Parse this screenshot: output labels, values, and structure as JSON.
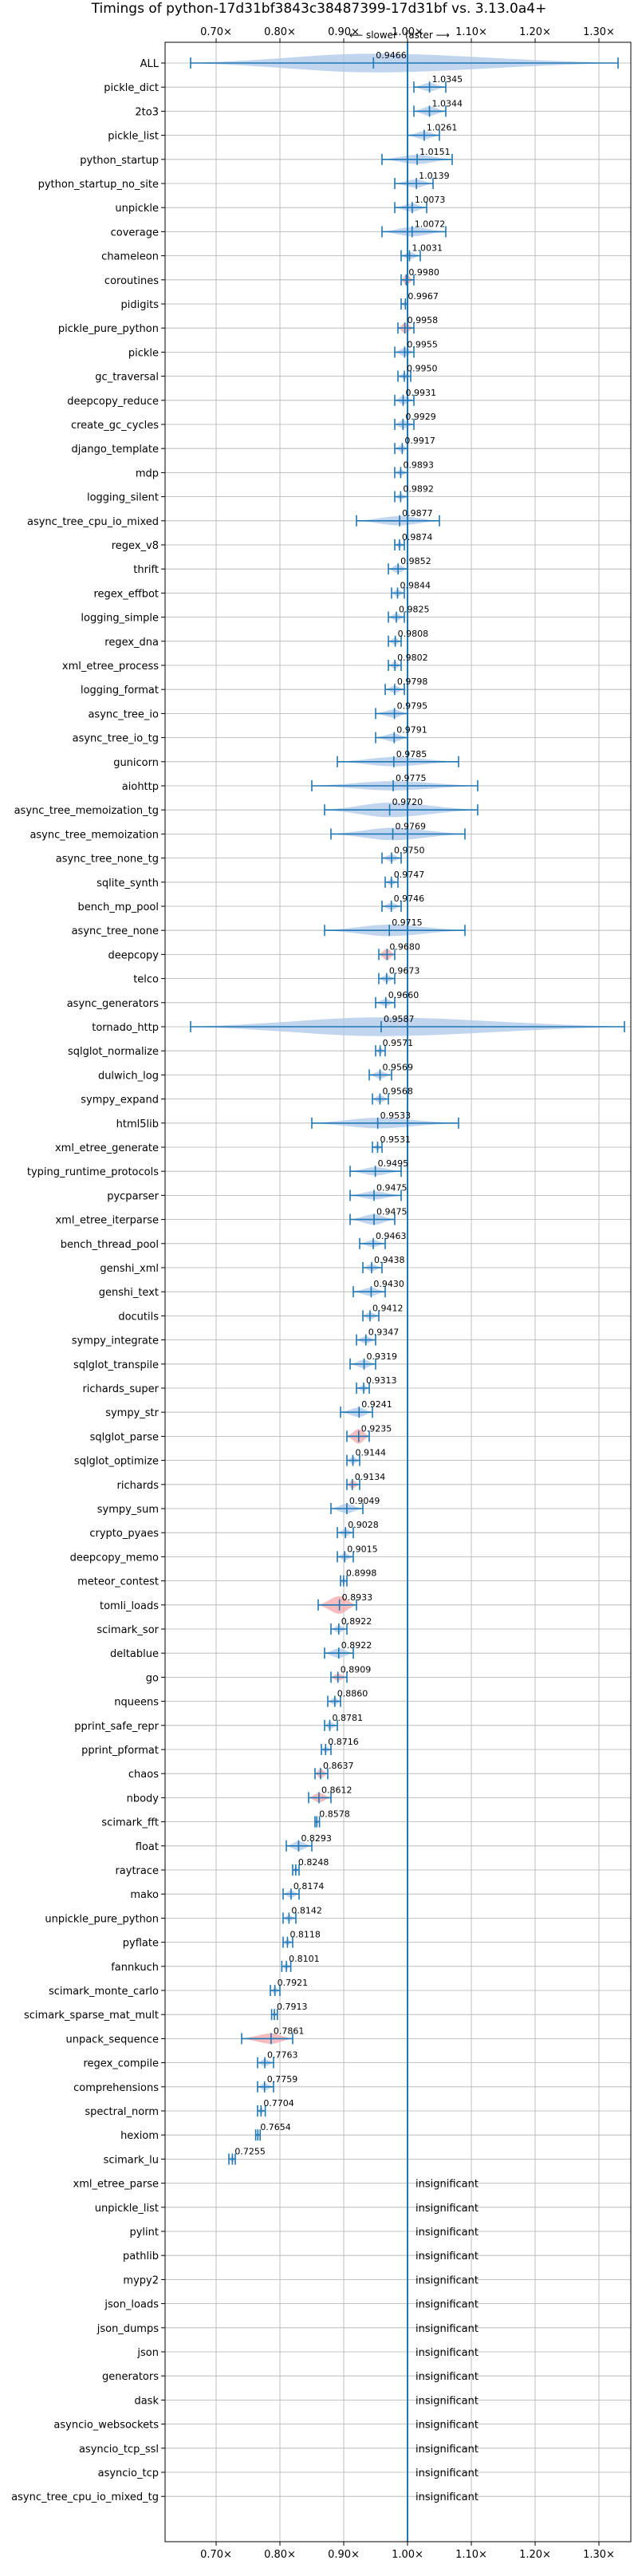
{
  "chart_data": {
    "type": "violin",
    "title": "Timings of python-17d31bf3843c38487399-17d31bf vs. 3.13.0a4+",
    "annotation": {
      "left": "⟵ slower",
      "right": "faster ⟶"
    },
    "xlim": [
      0.62,
      1.35
    ],
    "xticks": [
      0.7,
      0.8,
      0.9,
      1.0,
      1.1,
      1.2,
      1.3
    ],
    "xtick_labels": [
      "0.70×",
      "0.80×",
      "0.90×",
      "1.00×",
      "1.10×",
      "1.20×",
      "1.30×"
    ],
    "reference_line": 1.0,
    "grid": true,
    "insignificant_label": "insignificant",
    "colors": {
      "significant": "#aec7e8",
      "highlight": "#f4a6a8",
      "reference": "#1f77b4"
    },
    "benchmarks": [
      {
        "name": "ALL",
        "value": 0.9466,
        "lo": 0.66,
        "hi": 1.33,
        "w": 0.9,
        "c": 0
      },
      {
        "name": "pickle_dict",
        "value": 1.0345,
        "lo": 1.01,
        "hi": 1.06,
        "w": 0.4,
        "c": 0
      },
      {
        "name": "2to3",
        "value": 1.0344,
        "lo": 1.01,
        "hi": 1.06,
        "w": 0.45,
        "c": 0
      },
      {
        "name": "pickle_list",
        "value": 1.0261,
        "lo": 1.0,
        "hi": 1.05,
        "w": 0.4,
        "c": 0
      },
      {
        "name": "python_startup",
        "value": 1.0151,
        "lo": 0.96,
        "hi": 1.07,
        "w": 0.45,
        "c": 0
      },
      {
        "name": "python_startup_no_site",
        "value": 1.0139,
        "lo": 0.98,
        "hi": 1.04,
        "w": 0.4,
        "c": 0
      },
      {
        "name": "unpickle",
        "value": 1.0073,
        "lo": 0.98,
        "hi": 1.03,
        "w": 0.4,
        "c": 0
      },
      {
        "name": "coverage",
        "value": 1.0072,
        "lo": 0.96,
        "hi": 1.06,
        "w": 0.45,
        "c": 0
      },
      {
        "name": "chameleon",
        "value": 1.0031,
        "lo": 0.99,
        "hi": 1.02,
        "w": 0.35,
        "c": 0
      },
      {
        "name": "coroutines",
        "value": 0.998,
        "lo": 0.99,
        "hi": 1.01,
        "w": 0.5,
        "c": 1
      },
      {
        "name": "pidigits",
        "value": 0.9967,
        "lo": 0.99,
        "hi": 1.0,
        "w": 0.3,
        "c": 0
      },
      {
        "name": "pickle_pure_python",
        "value": 0.9958,
        "lo": 0.985,
        "hi": 1.01,
        "w": 0.5,
        "c": 1
      },
      {
        "name": "pickle",
        "value": 0.9955,
        "lo": 0.98,
        "hi": 1.01,
        "w": 0.4,
        "c": 0
      },
      {
        "name": "gc_traversal",
        "value": 0.995,
        "lo": 0.985,
        "hi": 1.005,
        "w": 0.3,
        "c": 0
      },
      {
        "name": "deepcopy_reduce",
        "value": 0.9931,
        "lo": 0.98,
        "hi": 1.01,
        "w": 0.4,
        "c": 0
      },
      {
        "name": "create_gc_cycles",
        "value": 0.9929,
        "lo": 0.98,
        "hi": 1.01,
        "w": 0.4,
        "c": 0
      },
      {
        "name": "django_template",
        "value": 0.9917,
        "lo": 0.98,
        "hi": 1.0,
        "w": 0.35,
        "c": 0
      },
      {
        "name": "mdp",
        "value": 0.9893,
        "lo": 0.98,
        "hi": 1.0,
        "w": 0.3,
        "c": 0
      },
      {
        "name": "logging_silent",
        "value": 0.9892,
        "lo": 0.98,
        "hi": 1.0,
        "w": 0.3,
        "c": 0
      },
      {
        "name": "async_tree_cpu_io_mixed",
        "value": 0.9877,
        "lo": 0.92,
        "hi": 1.05,
        "w": 0.45,
        "c": 0
      },
      {
        "name": "regex_v8",
        "value": 0.9874,
        "lo": 0.98,
        "hi": 0.995,
        "w": 0.3,
        "c": 0
      },
      {
        "name": "thrift",
        "value": 0.9852,
        "lo": 0.97,
        "hi": 1.0,
        "w": 0.4,
        "c": 0
      },
      {
        "name": "regex_effbot",
        "value": 0.9844,
        "lo": 0.975,
        "hi": 0.995,
        "w": 0.35,
        "c": 0
      },
      {
        "name": "logging_simple",
        "value": 0.9825,
        "lo": 0.97,
        "hi": 0.995,
        "w": 0.35,
        "c": 0
      },
      {
        "name": "regex_dna",
        "value": 0.9808,
        "lo": 0.97,
        "hi": 0.99,
        "w": 0.35,
        "c": 0
      },
      {
        "name": "xml_etree_process",
        "value": 0.9802,
        "lo": 0.97,
        "hi": 0.99,
        "w": 0.35,
        "c": 0
      },
      {
        "name": "logging_format",
        "value": 0.9798,
        "lo": 0.965,
        "hi": 0.995,
        "w": 0.35,
        "c": 0
      },
      {
        "name": "async_tree_io",
        "value": 0.9795,
        "lo": 0.95,
        "hi": 1.0,
        "w": 0.4,
        "c": 0
      },
      {
        "name": "async_tree_io_tg",
        "value": 0.9791,
        "lo": 0.95,
        "hi": 1.0,
        "w": 0.4,
        "c": 0
      },
      {
        "name": "gunicorn",
        "value": 0.9785,
        "lo": 0.89,
        "hi": 1.08,
        "w": 0.45,
        "c": 0
      },
      {
        "name": "aiohttp",
        "value": 0.9775,
        "lo": 0.85,
        "hi": 1.11,
        "w": 0.45,
        "c": 0
      },
      {
        "name": "async_tree_memoization_tg",
        "value": 0.972,
        "lo": 0.87,
        "hi": 1.11,
        "w": 0.7,
        "c": 0
      },
      {
        "name": "async_tree_memoization",
        "value": 0.9769,
        "lo": 0.88,
        "hi": 1.09,
        "w": 0.6,
        "c": 0
      },
      {
        "name": "async_tree_none_tg",
        "value": 0.975,
        "lo": 0.96,
        "hi": 0.99,
        "w": 0.35,
        "c": 0
      },
      {
        "name": "sqlite_synth",
        "value": 0.9747,
        "lo": 0.965,
        "hi": 0.985,
        "w": 0.3,
        "c": 0
      },
      {
        "name": "bench_mp_pool",
        "value": 0.9746,
        "lo": 0.96,
        "hi": 0.99,
        "w": 0.35,
        "c": 0
      },
      {
        "name": "async_tree_none",
        "value": 0.9715,
        "lo": 0.87,
        "hi": 1.09,
        "w": 0.55,
        "c": 0
      },
      {
        "name": "deepcopy",
        "value": 0.968,
        "lo": 0.955,
        "hi": 0.98,
        "w": 0.55,
        "c": 1
      },
      {
        "name": "telco",
        "value": 0.9673,
        "lo": 0.955,
        "hi": 0.98,
        "w": 0.35,
        "c": 0
      },
      {
        "name": "async_generators",
        "value": 0.966,
        "lo": 0.95,
        "hi": 0.98,
        "w": 0.35,
        "c": 0
      },
      {
        "name": "tornado_http",
        "value": 0.9587,
        "lo": 0.66,
        "hi": 1.34,
        "w": 0.9,
        "c": 0
      },
      {
        "name": "sqlglot_normalize",
        "value": 0.9571,
        "lo": 0.95,
        "hi": 0.965,
        "w": 0.3,
        "c": 0
      },
      {
        "name": "dulwich_log",
        "value": 0.9569,
        "lo": 0.94,
        "hi": 0.975,
        "w": 0.35,
        "c": 0
      },
      {
        "name": "sympy_expand",
        "value": 0.9568,
        "lo": 0.945,
        "hi": 0.97,
        "w": 0.35,
        "c": 0
      },
      {
        "name": "html5lib",
        "value": 0.9533,
        "lo": 0.85,
        "hi": 1.08,
        "w": 0.5,
        "c": 0
      },
      {
        "name": "xml_etree_generate",
        "value": 0.9531,
        "lo": 0.945,
        "hi": 0.96,
        "w": 0.3,
        "c": 0
      },
      {
        "name": "typing_runtime_protocols",
        "value": 0.9495,
        "lo": 0.91,
        "hi": 0.99,
        "w": 0.4,
        "c": 0
      },
      {
        "name": "pycparser",
        "value": 0.9475,
        "lo": 0.91,
        "hi": 0.99,
        "w": 0.4,
        "c": 0
      },
      {
        "name": "xml_etree_iterparse",
        "value": 0.9475,
        "lo": 0.91,
        "hi": 0.98,
        "w": 0.5,
        "c": 0
      },
      {
        "name": "bench_thread_pool",
        "value": 0.9463,
        "lo": 0.925,
        "hi": 0.965,
        "w": 0.35,
        "c": 0
      },
      {
        "name": "genshi_xml",
        "value": 0.9438,
        "lo": 0.93,
        "hi": 0.96,
        "w": 0.35,
        "c": 0
      },
      {
        "name": "genshi_text",
        "value": 0.943,
        "lo": 0.915,
        "hi": 0.965,
        "w": 0.4,
        "c": 0
      },
      {
        "name": "docutils",
        "value": 0.9412,
        "lo": 0.93,
        "hi": 0.955,
        "w": 0.35,
        "c": 0
      },
      {
        "name": "sympy_integrate",
        "value": 0.9347,
        "lo": 0.92,
        "hi": 0.95,
        "w": 0.35,
        "c": 0
      },
      {
        "name": "sqlglot_transpile",
        "value": 0.9319,
        "lo": 0.91,
        "hi": 0.95,
        "w": 0.4,
        "c": 0
      },
      {
        "name": "richards_super",
        "value": 0.9313,
        "lo": 0.92,
        "hi": 0.94,
        "w": 0.3,
        "c": 0
      },
      {
        "name": "sympy_str",
        "value": 0.9241,
        "lo": 0.895,
        "hi": 0.945,
        "w": 0.45,
        "c": 0
      },
      {
        "name": "sqlglot_parse",
        "value": 0.9235,
        "lo": 0.905,
        "hi": 0.94,
        "w": 0.7,
        "c": 1
      },
      {
        "name": "sqlglot_optimize",
        "value": 0.9144,
        "lo": 0.905,
        "hi": 0.925,
        "w": 0.35,
        "c": 0
      },
      {
        "name": "richards",
        "value": 0.9134,
        "lo": 0.905,
        "hi": 0.925,
        "w": 0.4,
        "c": 1
      },
      {
        "name": "sympy_sum",
        "value": 0.9049,
        "lo": 0.88,
        "hi": 0.93,
        "w": 0.45,
        "c": 0
      },
      {
        "name": "crypto_pyaes",
        "value": 0.9028,
        "lo": 0.89,
        "hi": 0.915,
        "w": 0.35,
        "c": 0
      },
      {
        "name": "deepcopy_memo",
        "value": 0.9015,
        "lo": 0.89,
        "hi": 0.915,
        "w": 0.35,
        "c": 0
      },
      {
        "name": "meteor_contest",
        "value": 0.8998,
        "lo": 0.895,
        "hi": 0.905,
        "w": 0.3,
        "c": 0
      },
      {
        "name": "tomli_loads",
        "value": 0.8933,
        "lo": 0.86,
        "hi": 0.92,
        "w": 0.85,
        "c": 1
      },
      {
        "name": "scimark_sor",
        "value": 0.8922,
        "lo": 0.88,
        "hi": 0.905,
        "w": 0.35,
        "c": 0
      },
      {
        "name": "deltablue",
        "value": 0.8922,
        "lo": 0.87,
        "hi": 0.915,
        "w": 0.45,
        "c": 0
      },
      {
        "name": "go",
        "value": 0.8909,
        "lo": 0.88,
        "hi": 0.905,
        "w": 0.35,
        "c": 1
      },
      {
        "name": "nqueens",
        "value": 0.886,
        "lo": 0.875,
        "hi": 0.895,
        "w": 0.35,
        "c": 0
      },
      {
        "name": "pprint_safe_repr",
        "value": 0.8781,
        "lo": 0.87,
        "hi": 0.89,
        "w": 0.35,
        "c": 0
      },
      {
        "name": "pprint_pformat",
        "value": 0.8716,
        "lo": 0.865,
        "hi": 0.88,
        "w": 0.3,
        "c": 0
      },
      {
        "name": "chaos",
        "value": 0.8637,
        "lo": 0.855,
        "hi": 0.875,
        "w": 0.45,
        "c": 1
      },
      {
        "name": "nbody",
        "value": 0.8612,
        "lo": 0.845,
        "hi": 0.88,
        "w": 0.45,
        "c": 1
      },
      {
        "name": "scimark_fft",
        "value": 0.8578,
        "lo": 0.855,
        "hi": 0.862,
        "w": 0.25,
        "c": 0
      },
      {
        "name": "float",
        "value": 0.8293,
        "lo": 0.81,
        "hi": 0.85,
        "w": 0.45,
        "c": 0
      },
      {
        "name": "raytrace",
        "value": 0.8248,
        "lo": 0.82,
        "hi": 0.83,
        "w": 0.3,
        "c": 0
      },
      {
        "name": "mako",
        "value": 0.8174,
        "lo": 0.805,
        "hi": 0.83,
        "w": 0.35,
        "c": 0
      },
      {
        "name": "unpickle_pure_python",
        "value": 0.8142,
        "lo": 0.805,
        "hi": 0.825,
        "w": 0.3,
        "c": 0
      },
      {
        "name": "pyflate",
        "value": 0.8118,
        "lo": 0.805,
        "hi": 0.82,
        "w": 0.3,
        "c": 0
      },
      {
        "name": "fannkuch",
        "value": 0.8101,
        "lo": 0.803,
        "hi": 0.817,
        "w": 0.3,
        "c": 0
      },
      {
        "name": "scimark_monte_carlo",
        "value": 0.7921,
        "lo": 0.785,
        "hi": 0.8,
        "w": 0.3,
        "c": 0
      },
      {
        "name": "scimark_sparse_mat_mult",
        "value": 0.7913,
        "lo": 0.787,
        "hi": 0.796,
        "w": 0.25,
        "c": 0
      },
      {
        "name": "unpack_sequence",
        "value": 0.7861,
        "lo": 0.74,
        "hi": 0.82,
        "w": 0.5,
        "c": 1
      },
      {
        "name": "regex_compile",
        "value": 0.7763,
        "lo": 0.765,
        "hi": 0.79,
        "w": 0.35,
        "c": 0
      },
      {
        "name": "comprehensions",
        "value": 0.7759,
        "lo": 0.765,
        "hi": 0.79,
        "w": 0.35,
        "c": 0
      },
      {
        "name": "spectral_norm",
        "value": 0.7704,
        "lo": 0.765,
        "hi": 0.777,
        "w": 0.3,
        "c": 0
      },
      {
        "name": "hexiom",
        "value": 0.7654,
        "lo": 0.762,
        "hi": 0.769,
        "w": 0.25,
        "c": 0
      },
      {
        "name": "scimark_lu",
        "value": 0.7255,
        "lo": 0.72,
        "hi": 0.73,
        "w": 0.3,
        "c": 0
      },
      {
        "name": "xml_etree_parse",
        "value": null
      },
      {
        "name": "unpickle_list",
        "value": null
      },
      {
        "name": "pylint",
        "value": null
      },
      {
        "name": "pathlib",
        "value": null
      },
      {
        "name": "mypy2",
        "value": null
      },
      {
        "name": "json_loads",
        "value": null
      },
      {
        "name": "json_dumps",
        "value": null
      },
      {
        "name": "json",
        "value": null
      },
      {
        "name": "generators",
        "value": null
      },
      {
        "name": "dask",
        "value": null
      },
      {
        "name": "asyncio_websockets",
        "value": null
      },
      {
        "name": "asyncio_tcp_ssl",
        "value": null
      },
      {
        "name": "asyncio_tcp",
        "value": null
      },
      {
        "name": "async_tree_cpu_io_mixed_tg",
        "value": null
      }
    ]
  }
}
